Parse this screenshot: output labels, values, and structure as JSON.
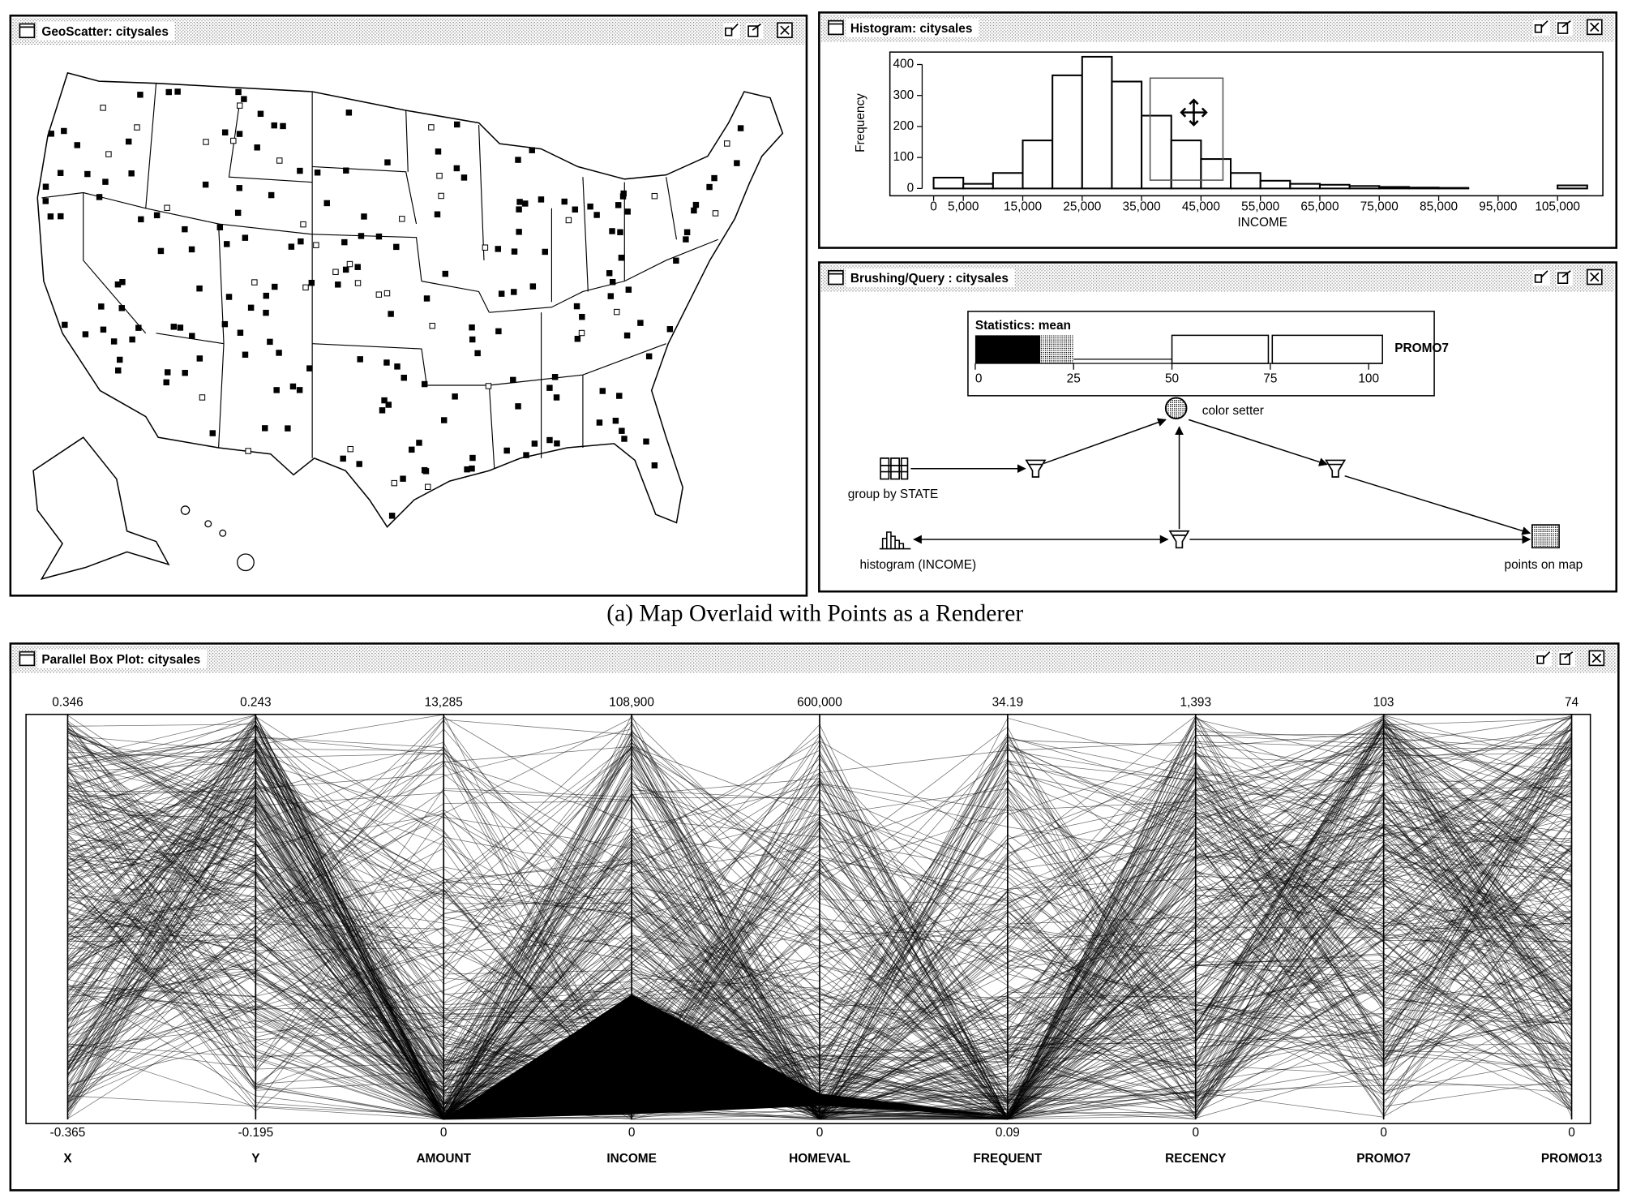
{
  "geo_window": {
    "title": "GeoScatter: citysales"
  },
  "histogram_window": {
    "title": "Histogram: citysales"
  },
  "chart_data": {
    "type": "histogram",
    "xlabel": "INCOME",
    "ylabel": "Frequency",
    "bins": [
      0,
      5000,
      10000,
      15000,
      20000,
      25000,
      30000,
      35000,
      40000,
      45000,
      50000,
      55000,
      60000,
      65000,
      70000,
      75000,
      80000,
      85000,
      90000,
      95000,
      100000,
      105000,
      110000
    ],
    "counts": [
      35,
      15,
      50,
      155,
      365,
      425,
      345,
      235,
      155,
      95,
      50,
      25,
      15,
      12,
      8,
      5,
      3,
      2,
      0,
      0,
      0,
      10
    ],
    "color": "#ffffff",
    "xlim": [
      0,
      110000
    ],
    "ylim": [
      0,
      430
    ],
    "yticks": [
      0,
      100,
      200,
      300,
      400
    ],
    "xticks": [
      0,
      {
        "value": 5000,
        "label": "5,000"
      },
      {
        "value": 15000,
        "label": "15,000"
      },
      {
        "value": 25000,
        "label": "25,000"
      },
      {
        "value": 35000,
        "label": "35,000"
      },
      {
        "value": 45000,
        "label": "45,000"
      },
      {
        "value": 55000,
        "label": "55,000"
      },
      {
        "value": 65000,
        "label": "65,000"
      },
      {
        "value": 75000,
        "label": "75,000"
      },
      {
        "value": 85000,
        "label": "85,000"
      },
      {
        "value": 95000,
        "label": "95,000"
      },
      {
        "value": 105000,
        "label": "105,000"
      }
    ]
  },
  "brushing_window": {
    "title": "Brushing/Query : citysales",
    "statistics": {
      "label": "Statistics: mean",
      "ticks": [
        0,
        25,
        50,
        75,
        100
      ],
      "variable": "PROMO7"
    },
    "nodes": [
      {
        "label": "color setter"
      },
      {
        "label": "group by STATE"
      },
      {
        "label": "histogram (INCOME)"
      },
      {
        "label": "points on map"
      }
    ]
  },
  "caption": "(a) Map Overlaid with Points as a Renderer",
  "parallel_window": {
    "title": "Parallel Box Plot: citysales",
    "axes": [
      {
        "name": "X",
        "max": "0.346",
        "min": "-0.365"
      },
      {
        "name": "Y",
        "max": "0.243",
        "min": "-0.195"
      },
      {
        "name": "AMOUNT",
        "max": "13,285",
        "min": "0"
      },
      {
        "name": "INCOME",
        "max": "108,900",
        "min": "0"
      },
      {
        "name": "HOMEVAL",
        "max": "600,000",
        "min": "0"
      },
      {
        "name": "FREQUENT",
        "max": "34.19",
        "min": "0.09"
      },
      {
        "name": "RECENCY",
        "max": "1,393",
        "min": "0"
      },
      {
        "name": "PROMO7",
        "max": "103",
        "min": "0"
      },
      {
        "name": "PROMO13",
        "max": "74",
        "min": "0"
      }
    ]
  }
}
